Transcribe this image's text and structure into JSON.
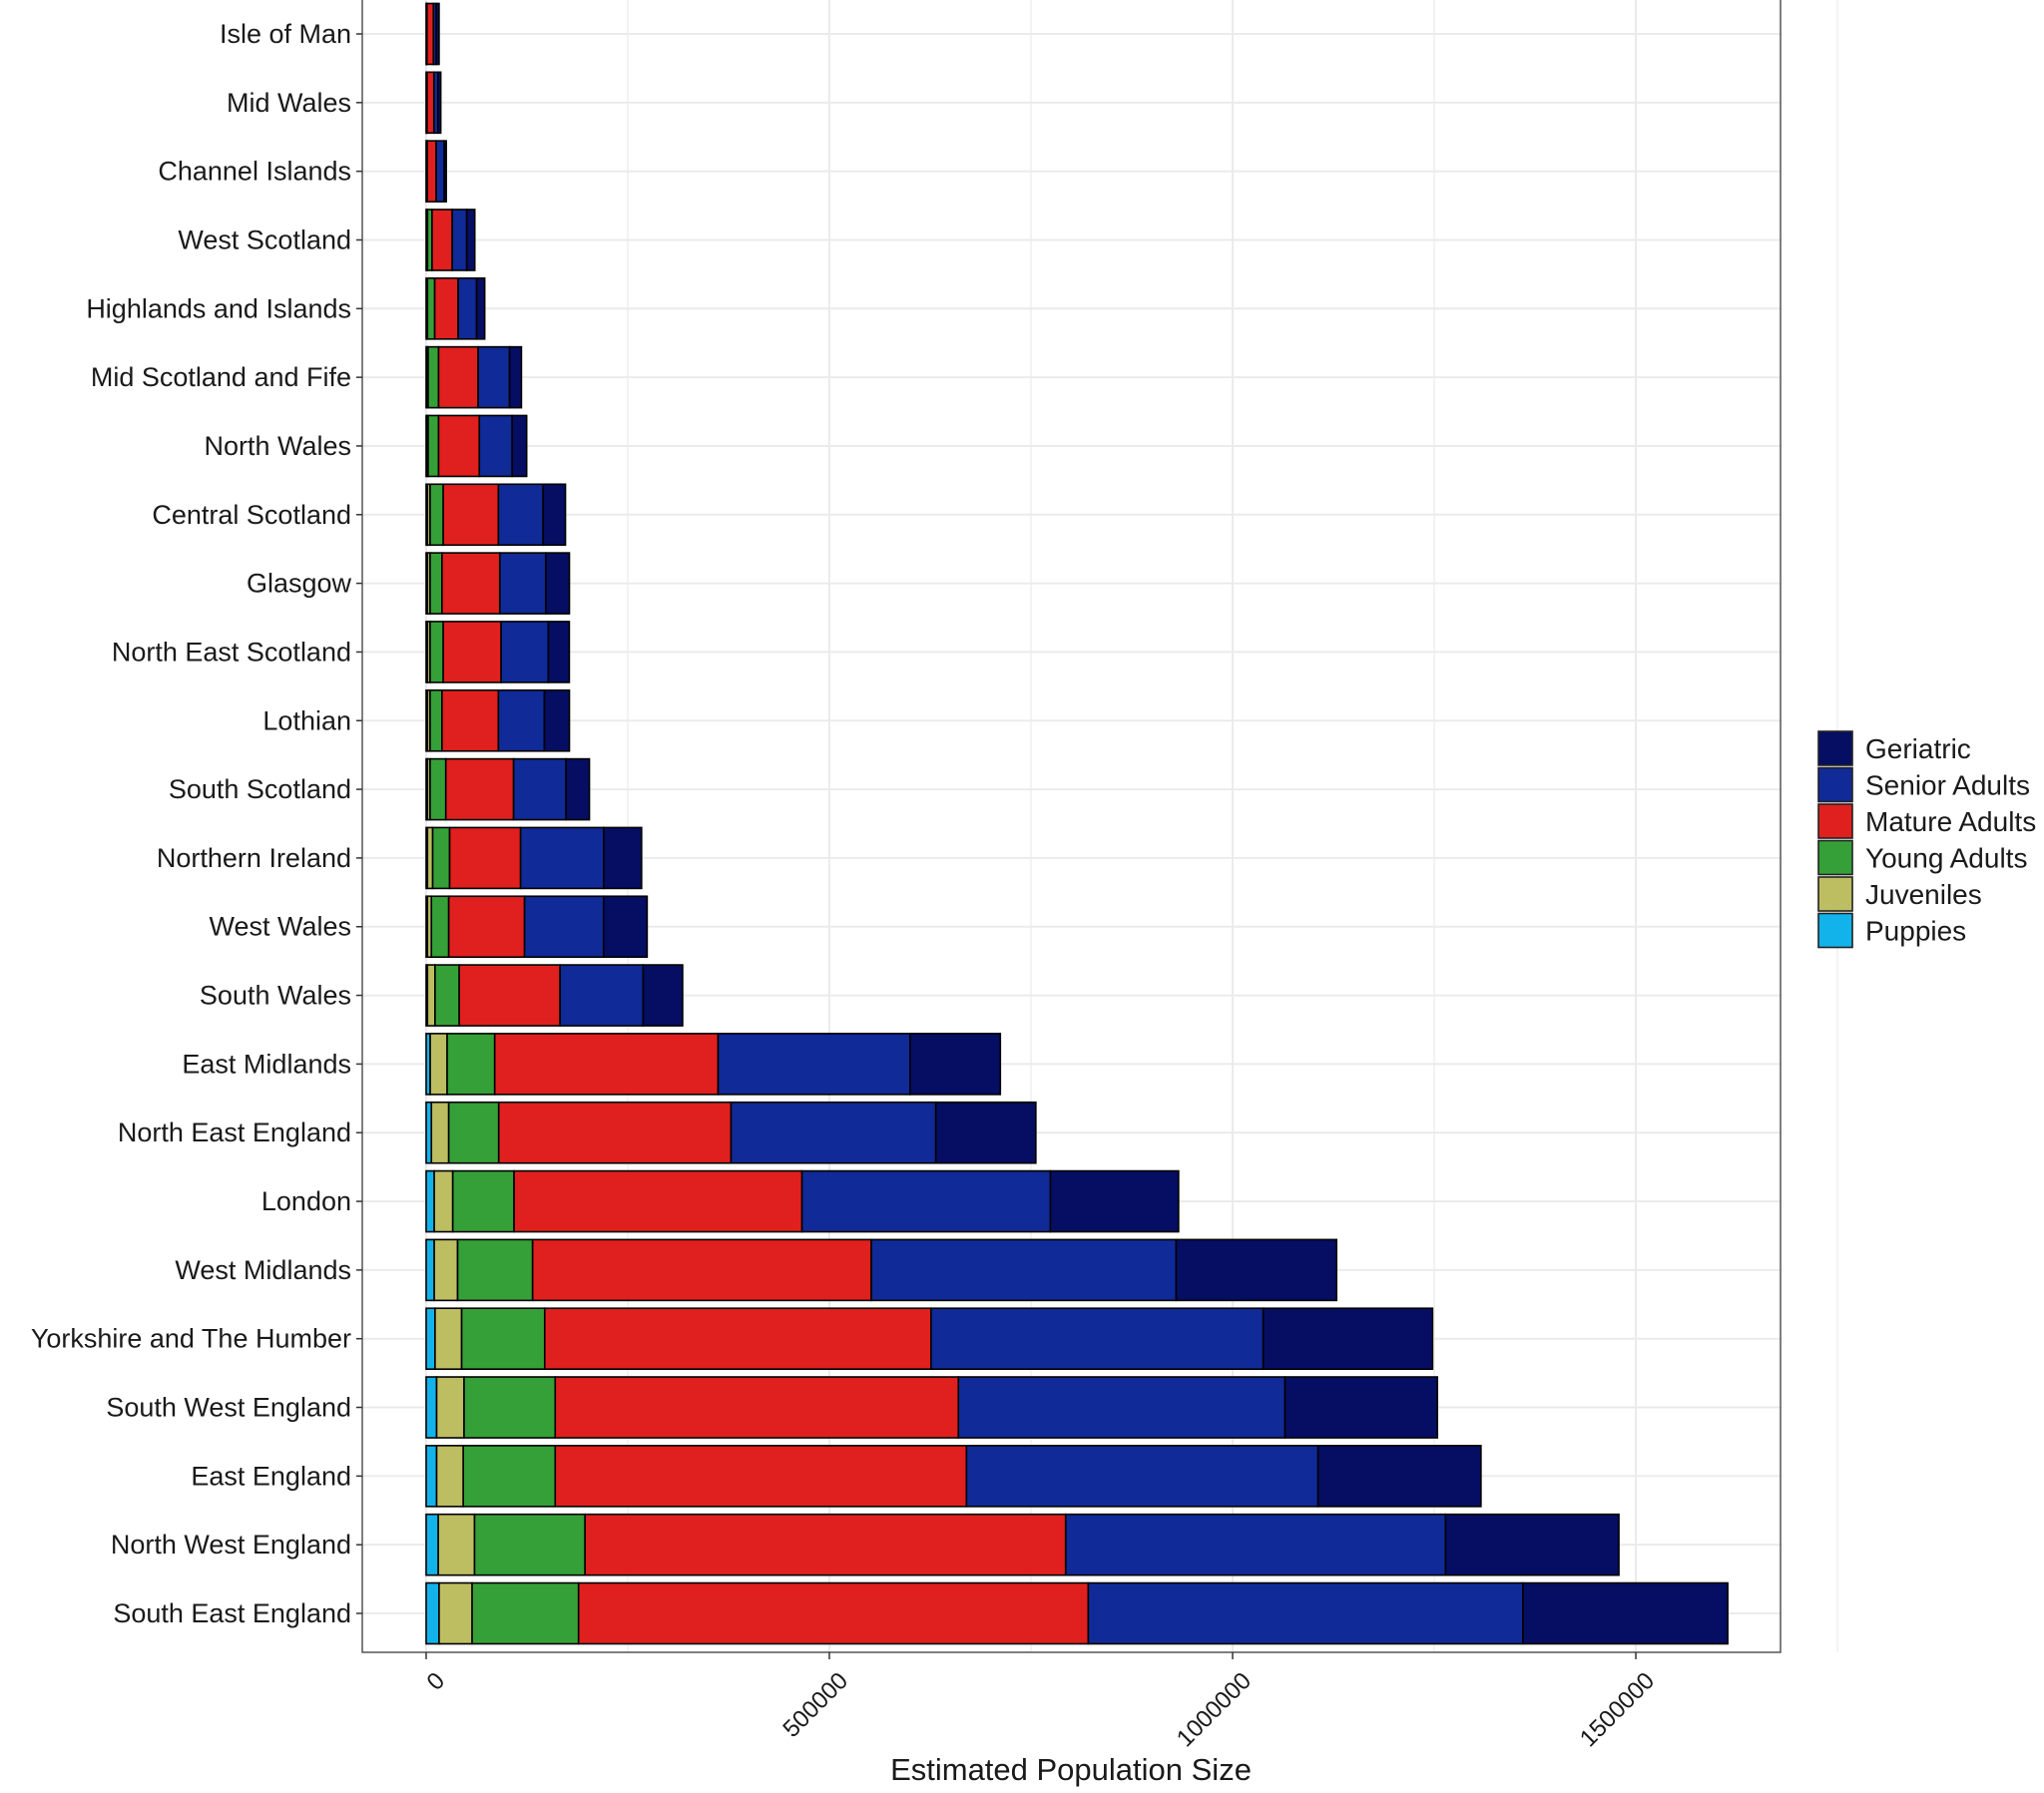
{
  "chart_data": {
    "type": "bar",
    "orientation": "horizontal",
    "stacked": true,
    "title": "",
    "xlabel": "Estimated Population Size",
    "ylabel": "",
    "xlim": [
      0,
      1750000
    ],
    "x_ticks": [
      0,
      500000,
      1000000,
      1500000
    ],
    "x_tick_labels": [
      "0",
      "500000",
      "1000000",
      "1500000"
    ],
    "grid": true,
    "legend_position": "right",
    "categories": [
      "Isle of Man",
      "Mid Wales",
      "Channel Islands",
      "West Scotland",
      "Highlands and Islands",
      "Mid Scotland and Fife",
      "North Wales",
      "Central Scotland",
      "Glasgow",
      "North East Scotland",
      "Lothian",
      "South Scotland",
      "Northern Ireland",
      "West Wales",
      "South Wales",
      "East Midlands",
      "North East England",
      "London",
      "West Midlands",
      "Yorkshire and The Humber",
      "South West England",
      "East England",
      "North West England",
      "South East England"
    ],
    "series": [
      {
        "name": "Puppies",
        "color": "#12b3ea",
        "values": [
          300,
          300,
          300,
          800,
          800,
          800,
          800,
          1600,
          1600,
          1600,
          1600,
          1600,
          1600,
          1600,
          1600,
          5000,
          6500,
          10000,
          10000,
          11000,
          13000,
          13000,
          15000,
          16000
        ]
      },
      {
        "name": "Juveniles",
        "color": "#bdbd62",
        "values": [
          300,
          300,
          400,
          800,
          800,
          1600,
          1600,
          3300,
          3300,
          3300,
          3300,
          3300,
          6500,
          4900,
          9400,
          21000,
          21500,
          23000,
          29000,
          33000,
          34000,
          33000,
          45000,
          41000
        ]
      },
      {
        "name": "Young Adults",
        "color": "#36a038",
        "values": [
          400,
          500,
          700,
          5700,
          9000,
          13000,
          13000,
          16300,
          14700,
          16300,
          14700,
          19500,
          21000,
          21500,
          30000,
          59000,
          62000,
          76000,
          93000,
          103000,
          113000,
          114000,
          137000,
          132000
        ]
      },
      {
        "name": "Mature Adults",
        "color": "#e0201e",
        "values": [
          8000,
          8500,
          11000,
          25000,
          29000,
          49000,
          50500,
          68400,
          71700,
          71700,
          70000,
          84000,
          88000,
          94000,
          125000,
          277000,
          288000,
          357000,
          420000,
          479000,
          500000,
          510000,
          596000,
          632000
        ]
      },
      {
        "name": "Senior Adults",
        "color": "#102a97",
        "values": [
          3500,
          5000,
          10000,
          18000,
          23000,
          39000,
          40700,
          55400,
          57000,
          58600,
          57000,
          65000,
          103000,
          98000,
          103000,
          238000,
          254000,
          308000,
          378000,
          412000,
          405000,
          436000,
          471000,
          539000
        ]
      },
      {
        "name": "Geriatric",
        "color": "#050e62",
        "values": [
          3500,
          3500,
          2500,
          10000,
          10000,
          14700,
          18000,
          27700,
          29300,
          26000,
          31000,
          29000,
          47000,
          54000,
          49000,
          112000,
          124000,
          159000,
          199000,
          210000,
          189000,
          202000,
          215000,
          254000
        ]
      }
    ],
    "legend_order": [
      "Geriatric",
      "Senior Adults",
      "Mature Adults",
      "Young Adults",
      "Juveniles",
      "Puppies"
    ]
  }
}
